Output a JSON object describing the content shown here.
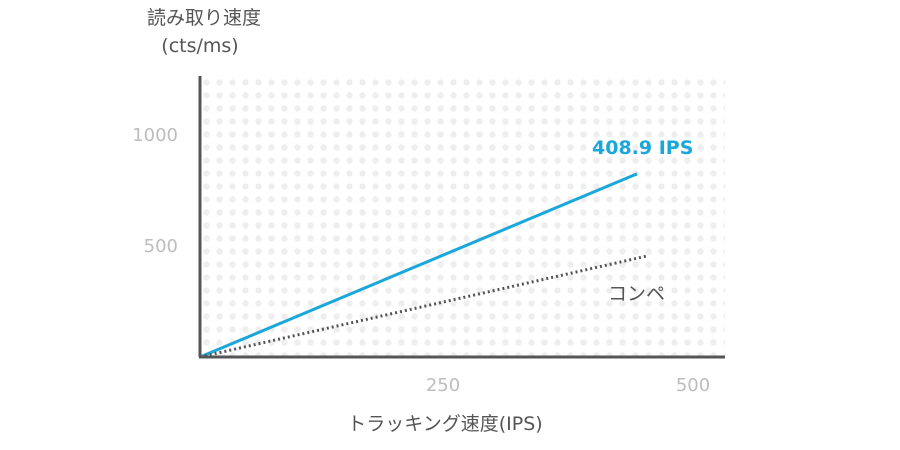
{
  "chart_data": {
    "type": "line",
    "ylabel_line1": "読み取り速度",
    "ylabel_line2": "(cts/ms)",
    "xlabel": "トラッキング速度(IPS)",
    "xlim": [
      0,
      500
    ],
    "ylim": [
      0,
      1100
    ],
    "x_ticks": [
      {
        "value": 250,
        "label": "250"
      },
      {
        "value": 500,
        "label": "500"
      }
    ],
    "y_ticks": [
      {
        "value": 500,
        "label": "500"
      },
      {
        "value": 1000,
        "label": "1000"
      }
    ],
    "series": [
      {
        "name": "408.9 IPS",
        "color": "#1aa7d9",
        "style": "solid",
        "x": [
          0,
          437
        ],
        "y": [
          0,
          825
        ]
      },
      {
        "name": "コンペ",
        "color": "#555555",
        "style": "dotted",
        "x": [
          0,
          447
        ],
        "y": [
          0,
          455
        ]
      }
    ],
    "background": "dot-grid"
  }
}
